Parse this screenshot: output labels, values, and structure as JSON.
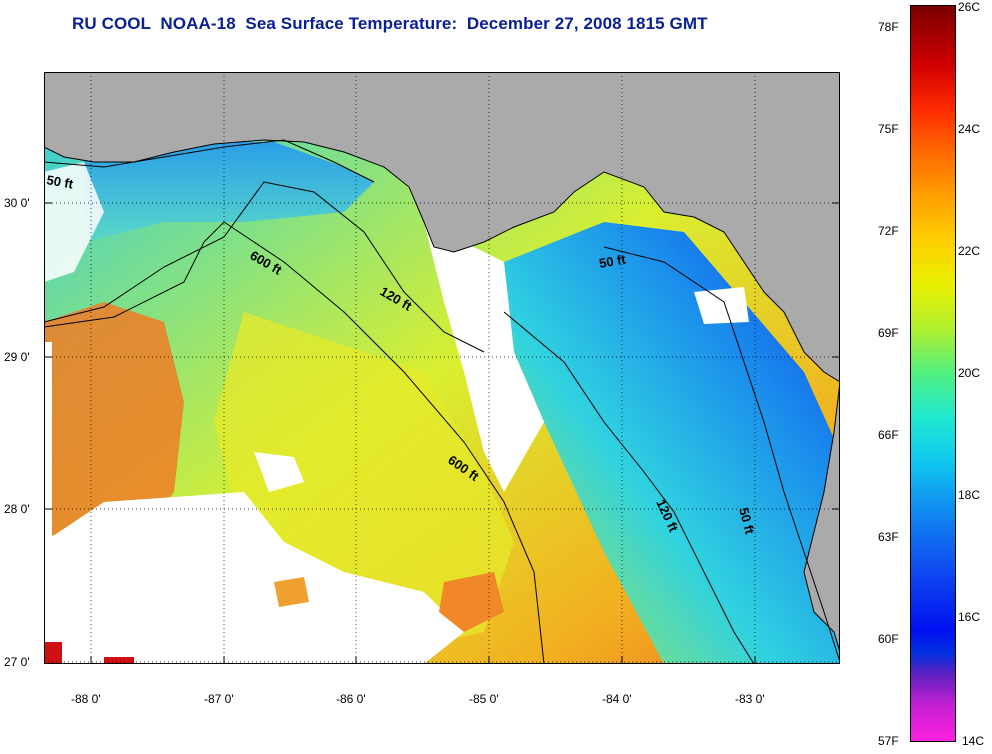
{
  "title": "RU COOL  NOAA-18  Sea Surface Temperature:  December 27, 2008 1815 GMT",
  "map": {
    "lon_ticks": [
      "-88 0'",
      "-87 0'",
      "-86 0'",
      "-85 0'",
      "-84 0'",
      "-83 0'"
    ],
    "lat_ticks": [
      "30 0'",
      "29 0'",
      "28 0'",
      "27 0'"
    ],
    "contour_labels": [
      "50 ft",
      "600 ft",
      "120 ft",
      "50 ft",
      "600 ft",
      "120 ft",
      "50 ft"
    ],
    "colors": {
      "land": "#aaaaaa",
      "cloud": "#ffffff"
    }
  },
  "colorbar": {
    "fahrenheit": [
      "78F",
      "75F",
      "72F",
      "69F",
      "66F",
      "63F",
      "60F",
      "57F"
    ],
    "celsius": [
      "26C",
      "24C",
      "22C",
      "20C",
      "18C",
      "16C",
      "14C"
    ]
  }
}
